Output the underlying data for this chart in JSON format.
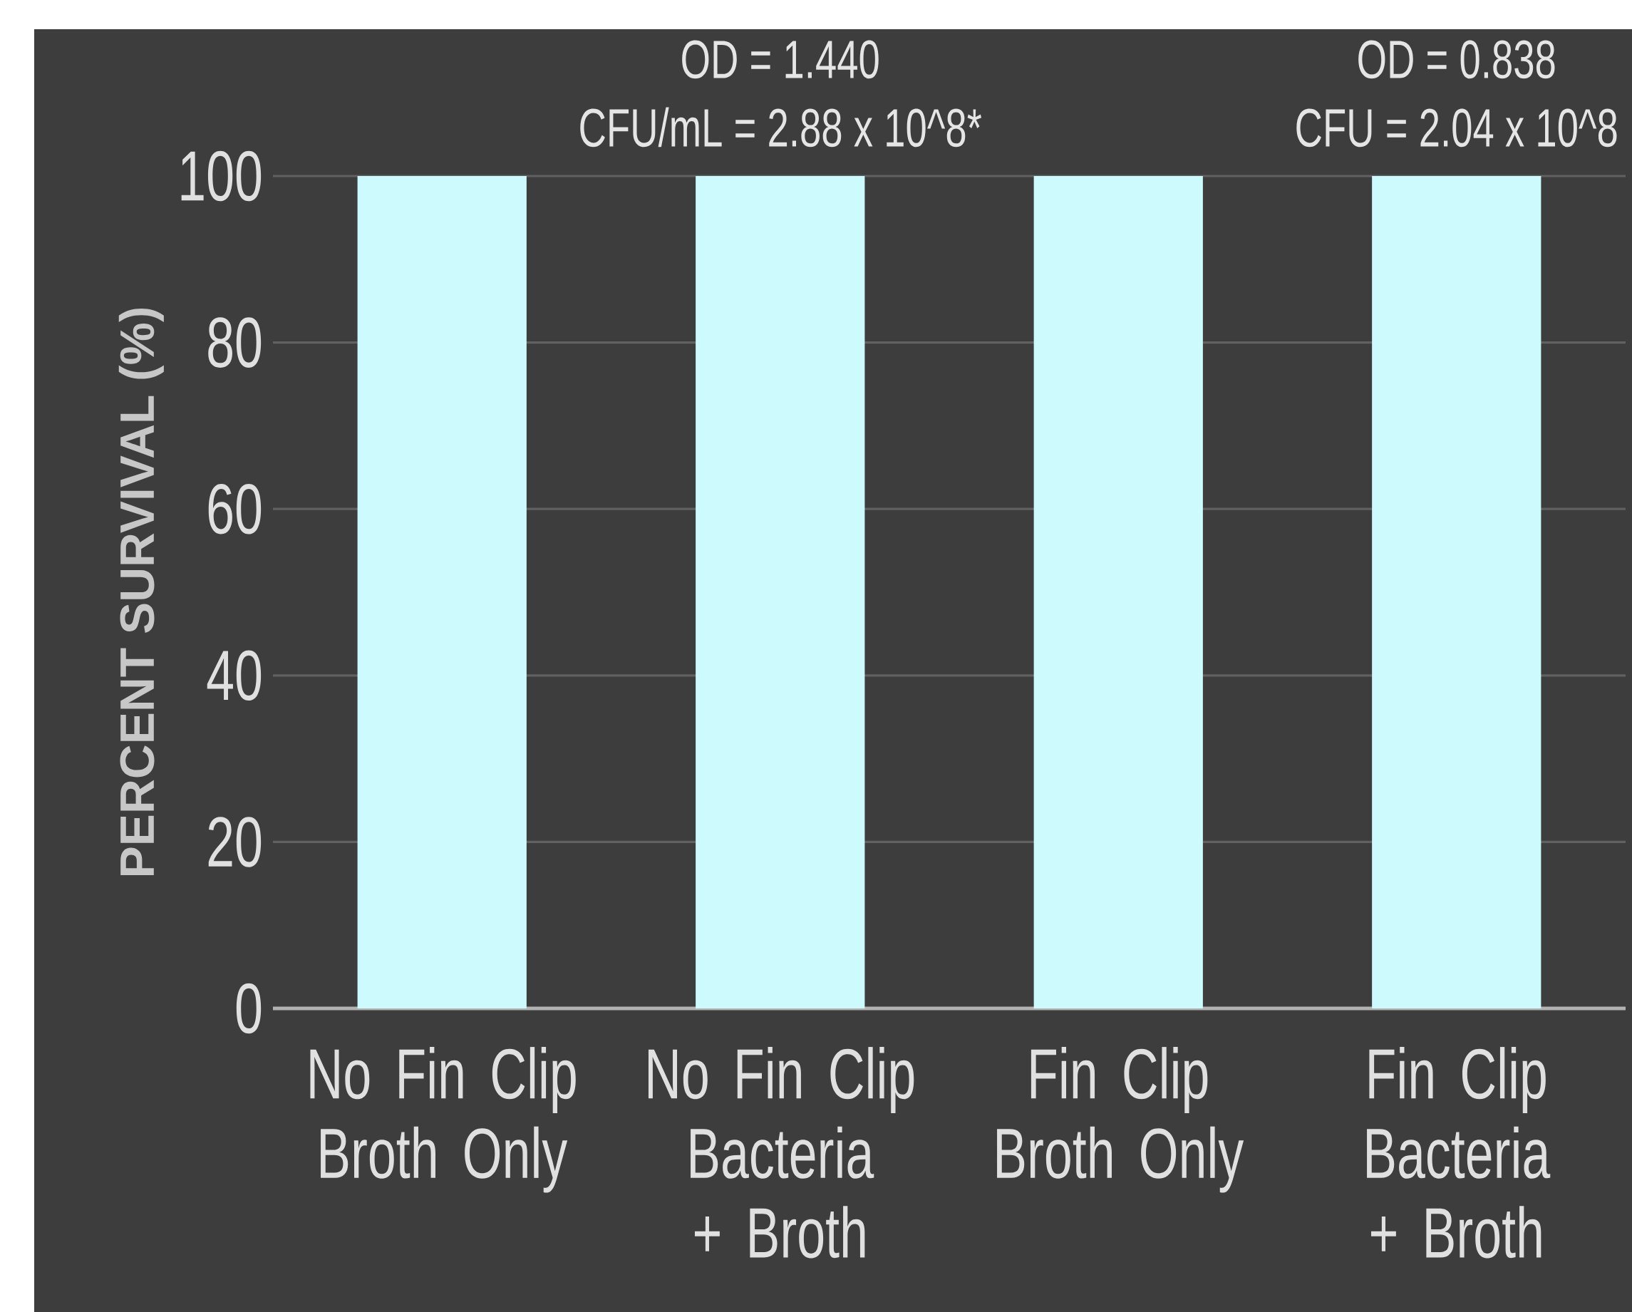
{
  "chart_data": {
    "type": "bar",
    "ylabel": "PERCENT SURVIVAL (%)",
    "categories": [
      "No Fin Clip Broth Only",
      "No Fin Clip Bacteria + Broth",
      "Fin Clip Broth Only",
      "Fin Clip Bacteria + Broth"
    ],
    "values": [
      100,
      100,
      100,
      100
    ],
    "color": "#cdfbfd",
    "ylim": [
      0,
      100
    ],
    "yticks": [
      0,
      20,
      40,
      60,
      80,
      100
    ],
    "grid": "y",
    "annotations": [
      {
        "text": "OD = 1.440",
        "x": "No Fin Clip Bacteria + Broth",
        "y": 100
      },
      {
        "text": "CFU/mL = 2.88 x 10^8*",
        "x": "No Fin Clip Bacteria + Broth",
        "y": 100
      },
      {
        "text": "OD = 0.838",
        "x": "Fin Clip Bacteria + Broth",
        "y": 100
      },
      {
        "text": "CFU = 2.04 x 10^8",
        "x": "Fin Clip Bacteria + Broth",
        "y": 100
      }
    ]
  }
}
